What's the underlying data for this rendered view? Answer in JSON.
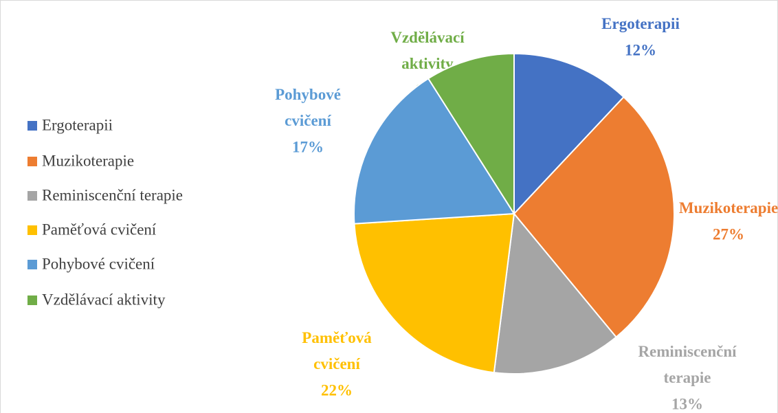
{
  "chart_data": {
    "type": "pie",
    "categories": [
      "Ergoterapii",
      "Muzikoterapie",
      "Reminiscenční terapie",
      "Paměťová cvičení",
      "Pohybové cvičení",
      "Vzdělávací aktivity"
    ],
    "values": [
      12,
      27,
      13,
      22,
      17,
      9
    ],
    "value_labels": [
      "12%",
      "27%",
      "13%",
      "22%",
      "17%",
      "9%"
    ],
    "colors": [
      "#4472c4",
      "#ed7d31",
      "#a5a5a5",
      "#ffc000",
      "#5b9bd5",
      "#70ad47"
    ],
    "legend": "left"
  }
}
